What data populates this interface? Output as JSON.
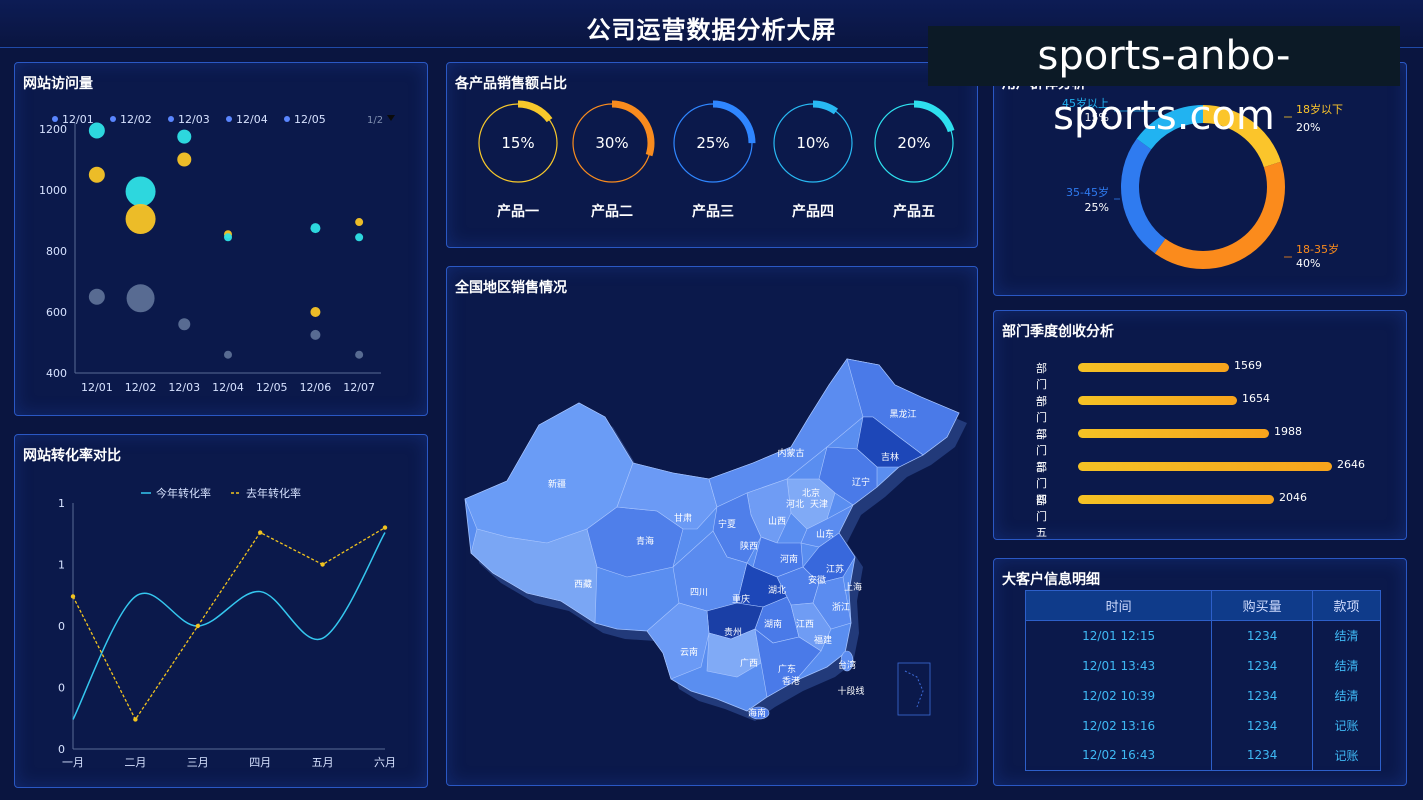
{
  "header": {
    "title": "公司运营数据分析大屏"
  },
  "watermark": "sports-anbo-sports.com",
  "visits": {
    "title": "网站访问量",
    "legend": [
      "12/01",
      "12/02",
      "12/03",
      "12/04",
      "12/05"
    ],
    "legend_page": "1/2",
    "colors": {
      "legend_dot": "#5a86ff",
      "cyan": "#2fe1e6",
      "yellow": "#f9c526",
      "gray": "#6b7fa4"
    }
  },
  "conversion": {
    "title": "网站转化率对比",
    "legend_this_year": "今年转化率",
    "legend_last_year": "去年转化率",
    "colors": {
      "this_year": "#35c7ef",
      "last_year": "#f2c41f"
    }
  },
  "products": {
    "title": "各产品销售额占比",
    "items": [
      {
        "name": "产品一",
        "pct_label": "15%",
        "value": 15,
        "color": "#f7c82b"
      },
      {
        "name": "产品二",
        "pct_label": "30%",
        "value": 30,
        "color": "#f88b1e"
      },
      {
        "name": "产品三",
        "pct_label": "25%",
        "value": 25,
        "color": "#2f86ff"
      },
      {
        "name": "产品四",
        "pct_label": "10%",
        "value": 10,
        "color": "#28b8f2"
      },
      {
        "name": "产品五",
        "pct_label": "20%",
        "value": 20,
        "color": "#2ee0ee"
      }
    ]
  },
  "map": {
    "title": "全国地区销售情况",
    "provinces": [
      "黑龙江",
      "吉林",
      "辽宁",
      "内蒙古",
      "北京",
      "天津",
      "河北",
      "山西",
      "山东",
      "河南",
      "陕西",
      "宁夏",
      "甘肃",
      "青海",
      "新疆",
      "西藏",
      "四川",
      "重庆",
      "湖北",
      "安徽",
      "江苏",
      "上海",
      "浙江",
      "湖南",
      "江西",
      "福建",
      "贵州",
      "云南",
      "广西",
      "广东",
      "香港",
      "台湾",
      "海南",
      "十段线"
    ]
  },
  "users": {
    "title": "用户群体分析",
    "segments": [
      {
        "name": "18岁以下",
        "pct_label": "20%",
        "value": 20,
        "color": "#fbc52b"
      },
      {
        "name": "18-35岁",
        "pct_label": "40%",
        "value": 40,
        "color": "#fb8b1c"
      },
      {
        "name": "35-45岁",
        "pct_label": "25%",
        "value": 25,
        "color": "#2f7bf0"
      },
      {
        "name": "45岁以上",
        "pct_label": "15%",
        "value": 15,
        "color": "#21b3f1"
      }
    ]
  },
  "departments": {
    "title": "部门季度创收分析",
    "items": [
      {
        "name": "部门一",
        "value": 1569,
        "value_label": "1569"
      },
      {
        "name": "部门二",
        "value": 1654,
        "value_label": "1654"
      },
      {
        "name": "部门三",
        "value": 1988,
        "value_label": "1988"
      },
      {
        "name": "部门四",
        "value": 2646,
        "value_label": "2646"
      },
      {
        "name": "部门五",
        "value": 2046,
        "value_label": "2046"
      }
    ]
  },
  "customers": {
    "title": "大客户信息明细",
    "columns": [
      "时间",
      "购买量",
      "款项"
    ],
    "rows": [
      [
        "12/01 12:15",
        "1234",
        "结清"
      ],
      [
        "12/01 13:43",
        "1234",
        "结清"
      ],
      [
        "12/02 10:39",
        "1234",
        "结清"
      ],
      [
        "12/02 13:16",
        "1234",
        "记账"
      ],
      [
        "12/02 16:43",
        "1234",
        "记账"
      ]
    ]
  },
  "chart_data": [
    {
      "type": "scatter",
      "x_categories": [
        "12/01",
        "12/02",
        "12/03",
        "12/04",
        "12/05",
        "12/06",
        "12/07"
      ],
      "y_ticks": [
        "1200",
        "1000",
        "800",
        "600",
        "400"
      ],
      "ylim": [
        400,
        1200
      ],
      "points": [
        {
          "x": "12/01",
          "y": 1195,
          "size": 8,
          "color": "cyan"
        },
        {
          "x": "12/01",
          "y": 1050,
          "size": 8,
          "color": "yellow"
        },
        {
          "x": "12/01",
          "y": 650,
          "size": 8,
          "color": "gray"
        },
        {
          "x": "12/02",
          "y": 995,
          "size": 15,
          "color": "cyan"
        },
        {
          "x": "12/02",
          "y": 905,
          "size": 15,
          "color": "yellow"
        },
        {
          "x": "12/02",
          "y": 645,
          "size": 14,
          "color": "gray"
        },
        {
          "x": "12/03",
          "y": 1175,
          "size": 7,
          "color": "cyan"
        },
        {
          "x": "12/03",
          "y": 1100,
          "size": 7,
          "color": "yellow"
        },
        {
          "x": "12/03",
          "y": 560,
          "size": 6,
          "color": "gray"
        },
        {
          "x": "12/04",
          "y": 855,
          "size": 4,
          "color": "yellow"
        },
        {
          "x": "12/04",
          "y": 845,
          "size": 4,
          "color": "cyan"
        },
        {
          "x": "12/04",
          "y": 460,
          "size": 4,
          "color": "gray"
        },
        {
          "x": "12/06",
          "y": 875,
          "size": 5,
          "color": "cyan"
        },
        {
          "x": "12/06",
          "y": 600,
          "size": 5,
          "color": "yellow"
        },
        {
          "x": "12/06",
          "y": 525,
          "size": 5,
          "color": "gray"
        },
        {
          "x": "12/07",
          "y": 895,
          "size": 4,
          "color": "yellow"
        },
        {
          "x": "12/07",
          "y": 845,
          "size": 4,
          "color": "cyan"
        },
        {
          "x": "12/07",
          "y": 460,
          "size": 4,
          "color": "gray"
        }
      ]
    },
    {
      "type": "line",
      "categories": [
        "一月",
        "二月",
        "三月",
        "四月",
        "五月",
        "六月"
      ],
      "y_ticks": [
        "1",
        "1",
        "0",
        "0",
        "0"
      ],
      "ylim": [
        0,
        1
      ],
      "series": [
        {
          "name": "今年转化率",
          "values": [
            0.12,
            0.62,
            0.5,
            0.64,
            0.45,
            0.88
          ],
          "smooth": true
        },
        {
          "name": "去年转化率",
          "values": [
            0.62,
            0.12,
            0.5,
            0.88,
            0.75,
            0.9
          ],
          "dashed": true
        }
      ]
    },
    {
      "type": "pie",
      "slices": [
        {
          "label": "18岁以下",
          "value": 20
        },
        {
          "label": "18-35岁",
          "value": 40
        },
        {
          "label": "35-45岁",
          "value": 25
        },
        {
          "label": "45岁以上",
          "value": 15
        }
      ]
    },
    {
      "type": "bar",
      "orientation": "horizontal",
      "categories": [
        "部门一",
        "部门二",
        "部门三",
        "部门四",
        "部门五"
      ],
      "values": [
        1569,
        1654,
        1988,
        2646,
        2046
      ]
    }
  ]
}
